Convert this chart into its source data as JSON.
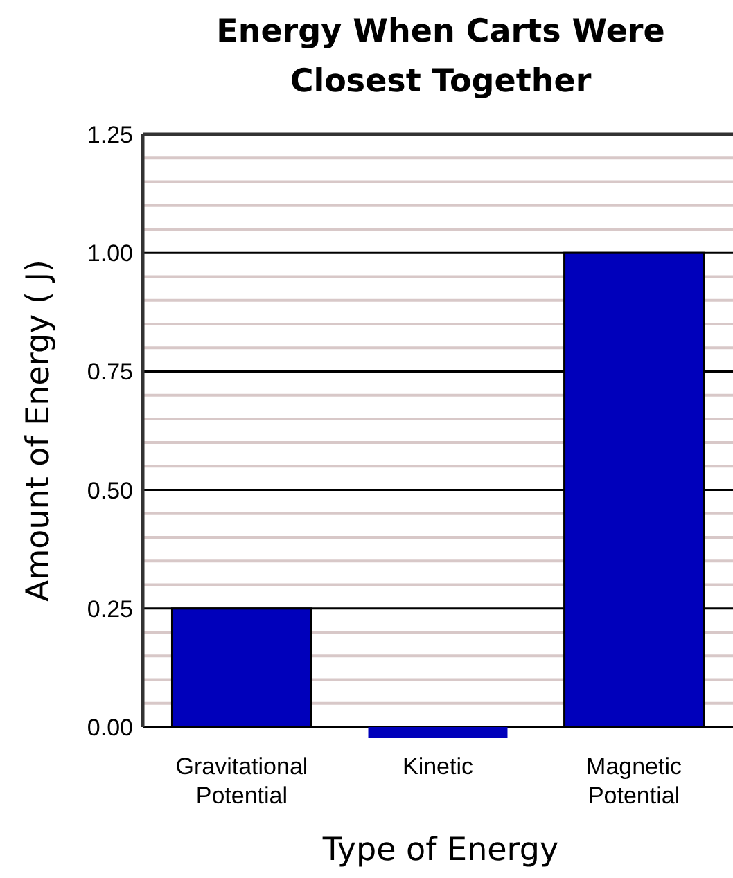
{
  "chart_data": {
    "type": "bar",
    "title": "Energy When Carts Were Closest Together",
    "xlabel": "Type of Energy",
    "ylabel": "Amount of Energy ( J)",
    "categories": [
      "Gravitational Potential",
      "Kinetic",
      "Magnetic Potential"
    ],
    "values": [
      0.25,
      0,
      1.0
    ],
    "color": "#0000bb",
    "ylim": [
      0,
      1.25
    ],
    "yticks": [
      {
        "value": 0,
        "label": "0.00"
      },
      {
        "value": 0.25,
        "label": "0.25"
      },
      {
        "value": 0.5,
        "label": "0.50"
      },
      {
        "value": 0.75,
        "label": "0.75"
      },
      {
        "value": 1,
        "label": "1.00"
      },
      {
        "value": 1.25,
        "label": "1.25"
      }
    ],
    "grid": true
  }
}
